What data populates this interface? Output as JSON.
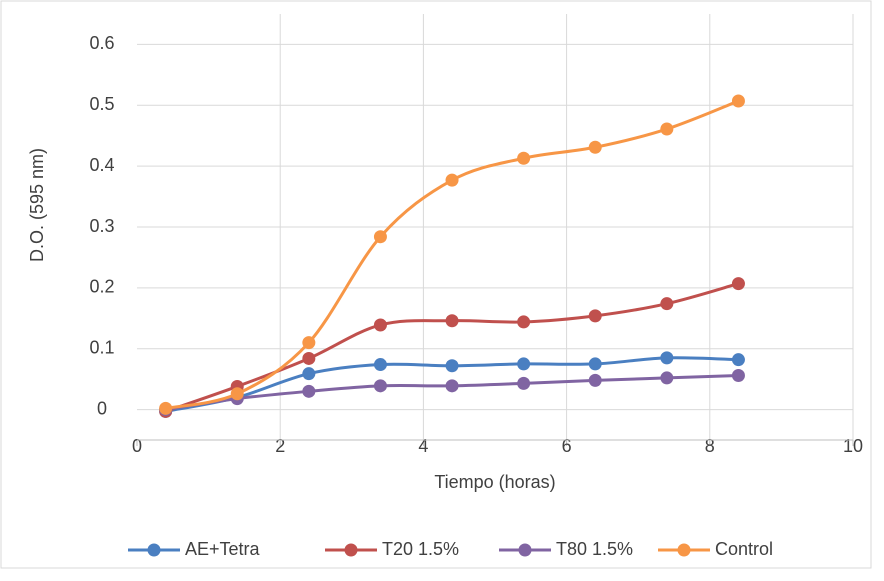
{
  "chart_data": {
    "type": "line",
    "xlabel": "Tiempo (horas)",
    "ylabel": "D.O. (595 nm)",
    "xlim": [
      0,
      10
    ],
    "xticks": [
      0,
      2,
      4,
      6,
      8,
      10
    ],
    "ylim": [
      -0.05,
      0.65
    ],
    "yticks": [
      0,
      0.1,
      0.2,
      0.3,
      0.4,
      0.5,
      0.6
    ],
    "grid": true,
    "legend": "bottom",
    "x": [
      0.4,
      1.4,
      2.4,
      3.4,
      4.4,
      5.4,
      6.4,
      7.4,
      8.4
    ],
    "series": [
      {
        "name": "AE+Tetra",
        "color": "#4a7fc1",
        "values": [
          -0.003,
          0.02,
          0.059,
          0.074,
          0.072,
          0.075,
          0.075,
          0.085,
          0.082
        ]
      },
      {
        "name": "T20 1.5%",
        "color": "#c0504d",
        "values": [
          -0.003,
          0.038,
          0.084,
          0.139,
          0.146,
          0.144,
          0.154,
          0.174,
          0.207
        ]
      },
      {
        "name": "T80 1.5%",
        "color": "#8064a2",
        "values": [
          0,
          0.018,
          0.03,
          0.039,
          0.039,
          0.043,
          0.048,
          0.052,
          0.056
        ]
      },
      {
        "name": "Control",
        "color": "#f79646",
        "values": [
          0.002,
          0.026,
          0.11,
          0.284,
          0.377,
          0.413,
          0.431,
          0.461,
          0.507
        ]
      }
    ]
  }
}
